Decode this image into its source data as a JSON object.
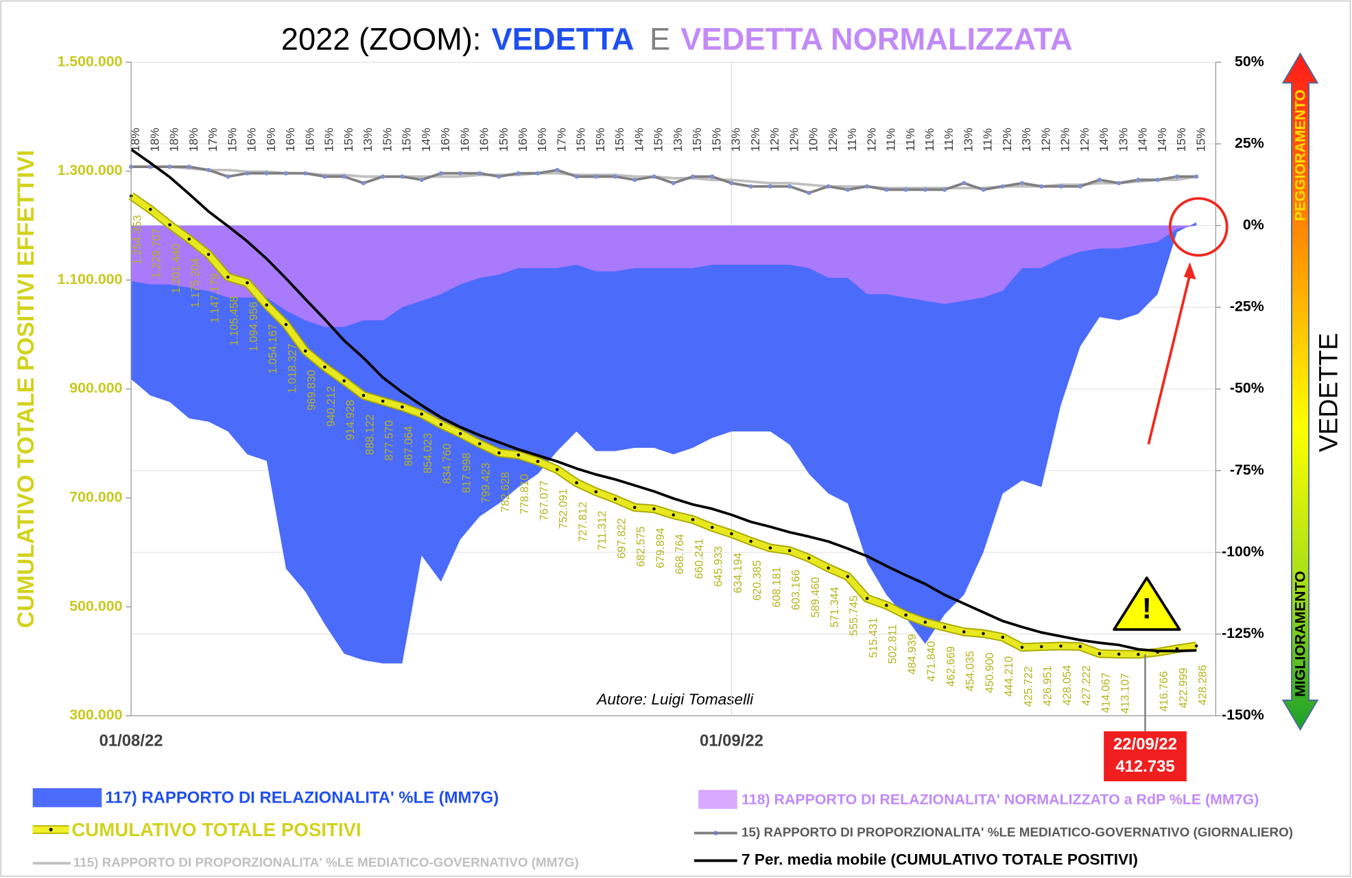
{
  "chart_data": {
    "type": "combo",
    "title_parts": [
      "2022 (ZOOM):",
      "VEDETTA",
      "E",
      "VEDETTA NORMALIZZATA"
    ],
    "ylabel": "CUMULATIVO TOTALE POSITIVI EFFETTIVI",
    "y2label": "VEDETTE",
    "annotations": {
      "worse": "PEGGIORAMENTO",
      "better": "MIGLIORAMENTO",
      "author": "Autore: Luigi Tomaselli"
    },
    "categories": [
      "01/08/22",
      null,
      null,
      null,
      null,
      null,
      null,
      null,
      null,
      null,
      null,
      null,
      null,
      null,
      null,
      null,
      null,
      null,
      null,
      null,
      null,
      null,
      null,
      null,
      null,
      null,
      null,
      null,
      null,
      null,
      null,
      "01/09/22",
      null,
      null,
      null,
      null,
      null,
      null,
      null,
      null,
      null,
      null,
      null,
      null,
      null,
      null,
      null,
      null,
      null,
      null,
      null,
      null,
      "22/09/22",
      null,
      null,
      null
    ],
    "ylim": [
      300000,
      1500000
    ],
    "yticks": [
      {
        "value": 1500000,
        "label": "1.500.000"
      },
      {
        "value": 1300000,
        "label": "1.300.000"
      },
      {
        "value": 1100000,
        "label": "1.100.000"
      },
      {
        "value": 900000,
        "label": "900.000"
      },
      {
        "value": 700000,
        "label": "700.000"
      },
      {
        "value": 500000,
        "label": "500.000"
      },
      {
        "value": 300000,
        "label": "300.000"
      }
    ],
    "y2lim": [
      -150,
      50
    ],
    "y2ticks": [
      {
        "value": 50,
        "label": "50%"
      },
      {
        "value": 25,
        "label": "25%"
      },
      {
        "value": 0,
        "label": "0%"
      },
      {
        "value": -25,
        "label": "-25%"
      },
      {
        "value": -50,
        "label": "-50%"
      },
      {
        "value": -75,
        "label": "-75%"
      },
      {
        "value": -100,
        "label": "-100%"
      },
      {
        "value": -125,
        "label": "-125%"
      },
      {
        "value": -150,
        "label": "-150%"
      }
    ],
    "grid": true,
    "series": [
      {
        "name": "117) RAPPORTO DI RELAZIONALITA'  %LE (MM7G)",
        "type": "area",
        "axis": "y2",
        "color": "#4b6bfb",
        "values": [
          -47,
          -52,
          -54,
          -59,
          -60,
          -63,
          -70,
          -72,
          -105,
          -112,
          -122,
          -131,
          -133,
          -134,
          -134,
          -101,
          -109,
          -96,
          -89,
          -85,
          -80,
          -76,
          -69,
          -63,
          -69,
          -69,
          -68,
          -68,
          -70,
          -68,
          -65,
          -63,
          -63,
          -63,
          -67,
          -76,
          -82,
          -85,
          -103,
          -113,
          -120,
          -128,
          -119,
          -113,
          -100,
          -82,
          -78,
          -80,
          -55,
          -37,
          -28,
          -29,
          -27,
          -21,
          -2,
          1
        ]
      },
      {
        "name": "118) RAPPORTO DI RELAZIONALITA' NORMALIZZATO a RdP %LE (MM7G)",
        "type": "area",
        "axis": "y2",
        "color": "#a97afc",
        "values": [
          -17,
          -18,
          -18,
          -19,
          -20,
          -22,
          -22,
          -22,
          -26,
          -29,
          -31,
          -31,
          -29,
          -29,
          -25,
          -23,
          -21,
          -18,
          -16,
          -15,
          -13,
          -13,
          -13,
          -12,
          -14,
          -14,
          -13,
          -13,
          -13,
          -13,
          -12,
          -12,
          -12,
          -12,
          -12,
          -13,
          -16,
          -16,
          -21,
          -21,
          -22,
          -23,
          -24,
          -23,
          -22,
          -20,
          -13,
          -13,
          -10,
          -8,
          -7,
          -7,
          -6,
          -5,
          -1,
          0
        ]
      },
      {
        "name": "115) RAPPORTO DI PROPORZIONALITA' %LE MEDIATICO-GOVERNATIVO (MM7G)",
        "type": "line",
        "axis": "y2",
        "color": "#bfbfbf",
        "values": [
          18,
          18,
          18,
          17.5,
          17,
          17,
          16.5,
          16.5,
          16,
          16,
          15.5,
          15.5,
          15,
          15,
          15,
          15,
          15,
          15,
          15.5,
          15.5,
          15.5,
          16,
          16,
          15.5,
          15.5,
          15.5,
          15,
          15,
          14.5,
          14.5,
          14,
          14,
          13.5,
          13,
          13,
          12.5,
          12,
          12,
          12,
          11.5,
          11.5,
          11.5,
          11.5,
          11.5,
          11.5,
          12,
          12,
          12,
          12.5,
          12.5,
          13,
          13,
          13.5,
          14,
          14,
          15
        ]
      },
      {
        "name": "15) RAPPORTO DI PROPORZIONALITA' %LE MEDIATICO-GOVERNATIVO (GIORNALIERO)",
        "type": "line",
        "axis": "y2",
        "color": "#7f7f7f",
        "values": [
          18,
          18,
          18,
          18,
          17,
          15,
          16,
          16,
          16,
          16,
          15,
          15,
          13,
          15,
          15,
          14,
          16,
          16,
          16,
          15,
          16,
          16,
          17,
          15,
          15,
          15,
          14,
          15,
          13,
          15,
          15,
          13,
          12,
          12,
          12,
          10,
          12,
          11,
          12,
          11,
          11,
          11,
          11,
          13,
          11,
          12,
          13,
          12,
          12,
          12,
          14,
          13,
          14,
          14,
          15,
          15
        ],
        "value_labels": [
          "18%",
          "18%",
          "18%",
          "18%",
          "17%",
          "15%",
          "16%",
          "16%",
          "16%",
          "16%",
          "15%",
          "15%",
          "13%",
          "15%",
          "15%",
          "14%",
          "16%",
          "16%",
          "16%",
          "15%",
          "16%",
          "16%",
          "17%",
          "15%",
          "15%",
          "15%",
          "14%",
          "15%",
          "13%",
          "15%",
          "15%",
          "13%",
          "12%",
          "12%",
          "12%",
          "10%",
          "12%",
          "11%",
          "12%",
          "11%",
          "11%",
          "11%",
          "11%",
          "13%",
          "11%",
          "12%",
          "13%",
          "12%",
          "12%",
          "12%",
          "14%",
          "13%",
          "14%",
          "14%",
          "15%",
          "15%"
        ]
      },
      {
        "name": "CUMULATIVO TOTALE POSITIVI",
        "type": "line",
        "axis": "y",
        "color": "#e8e820",
        "values": [
          1254353,
          1229707,
          1201440,
          1175204,
          1147179,
          1105458,
          1094956,
          1054167,
          1018327,
          969830,
          940212,
          914928,
          888122,
          877570,
          867064,
          854023,
          834760,
          817998,
          799423,
          782628,
          778810,
          767077,
          752091,
          727812,
          711312,
          697822,
          682575,
          679894,
          668764,
          660241,
          645933,
          634194,
          620385,
          608181,
          603166,
          589460,
          571344,
          555745,
          515431,
          502811,
          484939,
          471840,
          462669,
          454035,
          450900,
          444210,
          425722,
          426951,
          428054,
          427222,
          414067,
          413107,
          412735,
          416766,
          422999,
          428286
        ],
        "value_labels": [
          "1.254.353",
          "1.229.707",
          "1.201.440",
          "1.175.204",
          "1.147.179",
          "1.105.458",
          "1.094.956",
          "1.054.167",
          "1.018.327",
          "969.830",
          "940.212",
          "914.928",
          "888.122",
          "877.570",
          "867.064",
          "854.023",
          "834.760",
          "817.998",
          "799.423",
          "782.628",
          "778.810",
          "767.077",
          "752.091",
          "727.812",
          "711.312",
          "697.822",
          "682.575",
          "679.894",
          "668.764",
          "660.241",
          "645.933",
          "634.194",
          "620.385",
          "608.181",
          "603.166",
          "589.460",
          "571.344",
          "555.745",
          "515.431",
          "502.811",
          "484.939",
          "471.840",
          "462.669",
          "454.035",
          "450.900",
          "444.210",
          "425.722",
          "426.951",
          "428.054",
          "427.222",
          "414.067",
          "413.107",
          "412.735",
          "416.766",
          "422.999",
          "428.286"
        ]
      },
      {
        "name": "7 Per. media mobile (CUMULATIVO TOTALE POSITIVI)",
        "type": "line",
        "axis": "y",
        "color": "#000000",
        "values": [
          1340000,
          1315000,
          1289000,
          1258000,
          1226000,
          1199000,
          1171000,
          1139000,
          1103000,
          1065000,
          1028000,
          989000,
          957000,
          921000,
          894000,
          870000,
          848000,
          830000,
          815000,
          802000,
          789000,
          778000,
          767000,
          754000,
          743000,
          734000,
          723000,
          712000,
          699000,
          688000,
          680000,
          669000,
          656000,
          647000,
          637000,
          629000,
          620000,
          607000,
          593000,
          575000,
          558000,
          542000,
          522000,
          506000,
          490000,
          474000,
          463000,
          453000,
          446000,
          439000,
          434000,
          430000,
          422000,
          419000,
          419000,
          420000
        ]
      }
    ]
  }
}
